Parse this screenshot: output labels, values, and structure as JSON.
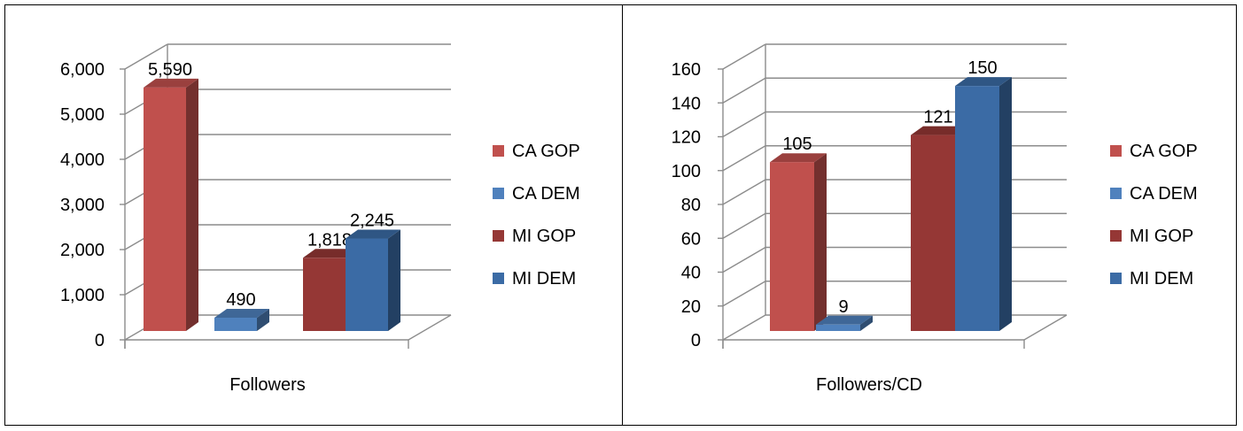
{
  "colors": {
    "CA GOP": "#C0504D",
    "CA DEM": "#4F81BD",
    "MI GOP": "#953735",
    "MI DEM": "#3B6BA5"
  },
  "chart_data": [
    {
      "type": "bar",
      "xlabel": "Followers",
      "ylim": [
        0,
        6000
      ],
      "yticks": [
        "0",
        "1,000",
        "2,000",
        "3,000",
        "4,000",
        "5,000",
        "6,000"
      ],
      "legend": [
        "CA GOP",
        "CA DEM",
        "MI GOP",
        "MI DEM"
      ],
      "legend_position": "right",
      "grid": true,
      "series": [
        {
          "name": "CA GOP",
          "value": 5590,
          "label": "5,590"
        },
        {
          "name": "CA DEM",
          "value": 490,
          "label": "490"
        },
        {
          "name": "MI GOP",
          "value": 1818,
          "label": "1,818"
        },
        {
          "name": "MI DEM",
          "value": 2245,
          "label": "2,245"
        }
      ]
    },
    {
      "type": "bar",
      "xlabel": "Followers/CD",
      "ylim": [
        0,
        160
      ],
      "yticks": [
        "0",
        "20",
        "40",
        "60",
        "80",
        "100",
        "120",
        "140",
        "160"
      ],
      "legend": [
        "CA GOP",
        "CA DEM",
        "MI GOP",
        "MI DEM"
      ],
      "legend_position": "right",
      "grid": true,
      "series": [
        {
          "name": "CA GOP",
          "value": 105,
          "label": "105"
        },
        {
          "name": "CA DEM",
          "value": 9,
          "label": "9"
        },
        {
          "name": "MI GOP",
          "value": 121,
          "label": "121"
        },
        {
          "name": "MI DEM",
          "value": 150,
          "label": "150"
        }
      ]
    }
  ]
}
